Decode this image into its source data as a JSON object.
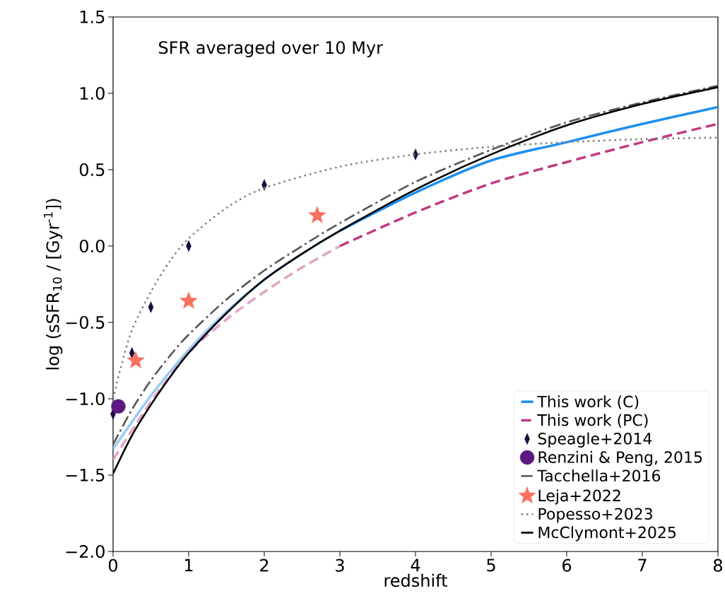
{
  "chart_data": {
    "type": "line",
    "xlabel": "redshift",
    "ylabel": "log (sSFR$_{10}$ / [Gyr$^{-1}$])",
    "annotations": [
      "SFR averaged over 10 Myr"
    ],
    "xlim": [
      0,
      8
    ],
    "ylim": [
      -2.0,
      1.5
    ],
    "xticks": [
      0,
      1,
      2,
      3,
      4,
      5,
      6,
      7,
      8
    ],
    "yticks": [
      {
        "value": -2.0,
        "label": "−2.0"
      },
      {
        "value": -1.5,
        "label": "−1.5"
      },
      {
        "value": -1.0,
        "label": "−1.0"
      },
      {
        "value": -0.5,
        "label": "−0.5"
      },
      {
        "value": 0.0,
        "label": "0.0"
      },
      {
        "value": 0.5,
        "label": "0.5"
      },
      {
        "value": 1.0,
        "label": "1.0"
      },
      {
        "value": 1.5,
        "label": "1.5"
      }
    ],
    "grid": false,
    "legend": "bottom right",
    "series": [
      {
        "color": "#9ccbf6",
        "line_style": "solid",
        "x": [
          0,
          0.5,
          1,
          1.5,
          2,
          2.5,
          3
        ],
        "values": [
          -1.33,
          -0.98,
          -0.68,
          -0.43,
          -0.22,
          -0.05,
          0.1
        ]
      },
      {
        "color": "#e2a3c4",
        "line_style": "dashed",
        "x": [
          0,
          0.5,
          1,
          1.5,
          2,
          2.5,
          3
        ],
        "values": [
          -1.4,
          -1.02,
          -0.7,
          -0.48,
          -0.3,
          -0.14,
          0.0
        ]
      },
      {
        "name": "This work (C)",
        "color": "#1f8ff0",
        "line_style": "solid",
        "x": [
          3,
          4,
          5,
          6,
          7,
          8
        ],
        "values": [
          0.1,
          0.35,
          0.56,
          0.68,
          0.8,
          0.91
        ]
      },
      {
        "name": "This work (PC)",
        "color": "#c03a80",
        "line_style": "dashed",
        "x": [
          3,
          4,
          5,
          6,
          7,
          8
        ],
        "values": [
          0.0,
          0.22,
          0.41,
          0.55,
          0.68,
          0.8
        ]
      },
      {
        "name": "Speagle+2014",
        "type": "scatter",
        "marker": "diamond",
        "color": "#1a1040",
        "x": [
          0,
          0.25,
          0.5,
          1,
          2,
          4
        ],
        "values": [
          -1.1,
          -0.7,
          -0.4,
          0.0,
          0.4,
          0.6
        ]
      },
      {
        "name": "Renzini & Peng, 2015",
        "type": "scatter",
        "marker": "circle",
        "color": "#5c1a80",
        "x": [
          0.07
        ],
        "values": [
          -1.05
        ]
      },
      {
        "name": "Tacchella+2016",
        "color": "#555555",
        "line_style": "dashdot",
        "x": [
          0,
          0.25,
          0.5,
          0.75,
          1,
          1.5,
          2,
          2.5,
          3,
          4,
          5,
          6,
          7,
          8
        ],
        "values": [
          -1.3,
          -1.07,
          -0.88,
          -0.72,
          -0.58,
          -0.35,
          -0.16,
          0.0,
          0.15,
          0.42,
          0.63,
          0.81,
          0.94,
          1.05
        ]
      },
      {
        "name": "Leja+2022",
        "type": "scatter",
        "marker": "star",
        "color": "#f87060",
        "x": [
          0.3,
          1,
          2.7
        ],
        "values": [
          -0.75,
          -0.36,
          0.2
        ]
      },
      {
        "name": "Popesso+2023",
        "color": "#808080",
        "line_style": "dotted",
        "x": [
          0,
          0.1,
          0.25,
          0.5,
          0.75,
          1,
          1.5,
          2,
          3,
          4,
          5,
          6,
          7,
          8
        ],
        "values": [
          -1.0,
          -0.8,
          -0.55,
          -0.3,
          -0.1,
          0.05,
          0.25,
          0.38,
          0.52,
          0.6,
          0.65,
          0.68,
          0.7,
          0.71
        ]
      },
      {
        "name": "McClymont+2025",
        "color": "#000000",
        "line_style": "solid",
        "x": [
          0,
          0.25,
          0.5,
          0.75,
          1,
          1.5,
          2,
          2.5,
          3,
          4,
          5,
          6,
          7,
          8
        ],
        "values": [
          -1.49,
          -1.24,
          -1.04,
          -0.86,
          -0.7,
          -0.44,
          -0.22,
          -0.05,
          0.1,
          0.37,
          0.6,
          0.79,
          0.93,
          1.04
        ]
      }
    ]
  }
}
